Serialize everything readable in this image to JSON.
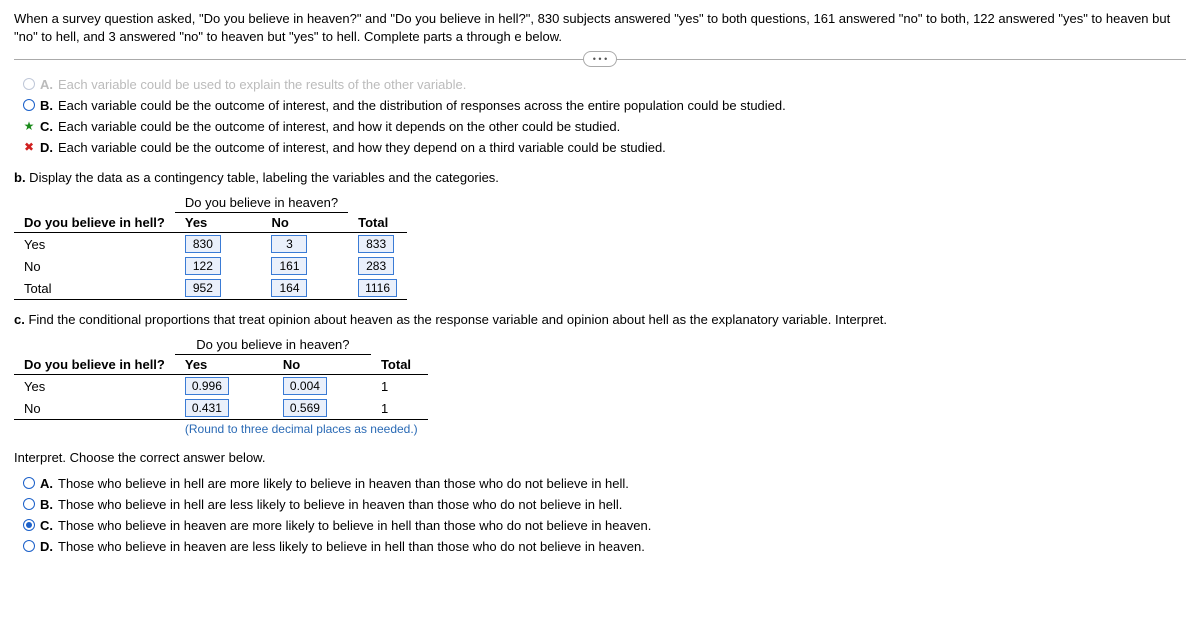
{
  "intro": "When a survey question asked, \"Do you believe in heaven?\" and \"Do you believe in hell?\", 830 subjects answered \"yes\" to both questions, 161 answered \"no\" to both, 122 answered \"yes\" to heaven but \"no\" to hell, and 3 answered \"no\" to heaven but \"yes\" to hell. Complete parts a through e below.",
  "ellipsis": "• • •",
  "partA": {
    "choices": [
      {
        "letter": "A.",
        "text": "Each variable could be used to explain the results of the other variable.",
        "faded": true
      },
      {
        "letter": "B.",
        "text": "Each variable could be the outcome of interest, and the distribution of responses across the entire population could be studied."
      },
      {
        "letter": "C.",
        "text": "Each variable could be the outcome of interest, and how it depends on the other could be studied."
      },
      {
        "letter": "D.",
        "text": "Each variable could be the outcome of interest, and how they depend on a third variable could be studied."
      }
    ]
  },
  "partB": {
    "prompt_bold": "b.",
    "prompt": " Display the data as a contingency table, labeling the variables and the categories.",
    "super_header": "Do you believe in heaven?",
    "row_header": "Do you believe in hell?",
    "cols": [
      "Yes",
      "No",
      "Total"
    ],
    "rows": [
      {
        "label": "Yes",
        "cells": [
          "830",
          "3",
          "833"
        ]
      },
      {
        "label": "No",
        "cells": [
          "122",
          "161",
          "283"
        ]
      },
      {
        "label": "Total",
        "cells": [
          "952",
          "164",
          "1116"
        ]
      }
    ]
  },
  "partC": {
    "prompt_bold": "c.",
    "prompt": " Find the conditional proportions that treat opinion about heaven as the response variable and opinion about hell as the explanatory variable. Interpret.",
    "super_header": "Do you believe in heaven?",
    "row_header": "Do you believe in hell?",
    "cols": [
      "Yes",
      "No",
      "Total"
    ],
    "rows": [
      {
        "label": "Yes",
        "cells": [
          "0.996",
          "0.004",
          "1"
        ]
      },
      {
        "label": "No",
        "cells": [
          "0.431",
          "0.569",
          "1"
        ]
      }
    ],
    "round_note": "(Round to three decimal places as needed.)",
    "interpret_prompt": "Interpret. Choose the correct answer below.",
    "choices": [
      {
        "letter": "A.",
        "text": "Those who believe in hell are more likely to believe in heaven than those who do not believe in hell.",
        "selected": false
      },
      {
        "letter": "B.",
        "text": "Those who believe in hell are less likely to believe in heaven than those who do not believe in hell.",
        "selected": false
      },
      {
        "letter": "C.",
        "text": "Those who believe in heaven are more likely to believe in hell than those who do not believe in heaven.",
        "selected": true
      },
      {
        "letter": "D.",
        "text": "Those who believe in heaven are less likely to believe in hell than those who do not believe in heaven.",
        "selected": false
      }
    ]
  }
}
